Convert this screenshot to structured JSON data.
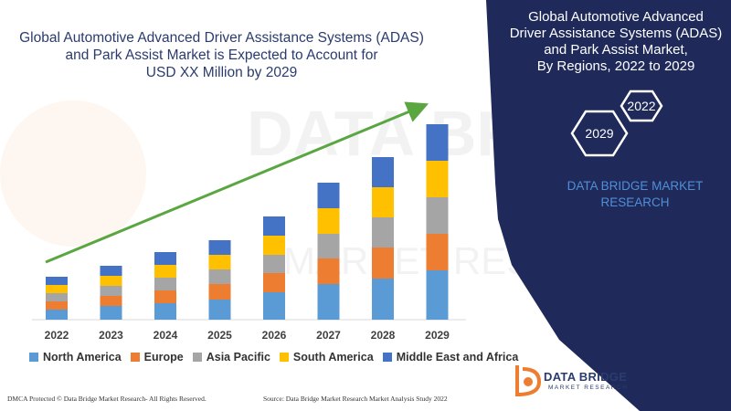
{
  "chart_data": {
    "type": "bar",
    "stacked": true,
    "title": "Global Automotive Advanced Driver Assistance Systems (ADAS) and Park Assist Market is Expected to Account for USD XX Million by 2029",
    "categories": [
      "2022",
      "2023",
      "2024",
      "2025",
      "2026",
      "2027",
      "2028",
      "2029"
    ],
    "series": [
      {
        "name": "North America",
        "color": "#5b9bd5",
        "values": [
          11,
          15,
          18,
          22,
          30,
          39,
          45,
          54
        ]
      },
      {
        "name": "Europe",
        "color": "#ed7d31",
        "values": [
          9,
          11,
          14,
          17,
          21,
          28,
          34,
          40
        ]
      },
      {
        "name": "Asia Pacific",
        "color": "#a5a5a5",
        "values": [
          9,
          11,
          14,
          16,
          20,
          27,
          33,
          40
        ]
      },
      {
        "name": "South America",
        "color": "#ffc000",
        "values": [
          9,
          11,
          14,
          16,
          21,
          28,
          33,
          40
        ]
      },
      {
        "name": "Middle East and Africa",
        "color": "#4472c4",
        "values": [
          9,
          11,
          14,
          16,
          21,
          28,
          33,
          40
        ]
      }
    ],
    "legend_position": "bottom",
    "grid": false
  },
  "title_lines": [
    "Global Automotive Advanced Driver Assistance Systems (ADAS)",
    "and Park Assist Market is Expected to Account for",
    "USD XX Million by 2029"
  ],
  "right_panel": {
    "title_lines": [
      "Global Automotive Advanced",
      "Driver Assistance Systems (ADAS)",
      "and Park Assist Market,",
      "By Regions, 2022 to 2029"
    ],
    "hex_start": "2022",
    "hex_end": "2029",
    "brand_lines": [
      "DATA BRIDGE MARKET",
      "RESEARCH"
    ],
    "bg_color": "#1f2a5a"
  },
  "logo": {
    "name": "DATA BRIDGE",
    "sub": "MARKET RESEARCH"
  },
  "footer": {
    "left": "DMCA Protected © Data Bridge Market Research- All Rights Reserved.",
    "right": "Source: Data Bridge Market Research Market Analysis Study 2022"
  },
  "colors": {
    "arrow": "#5aa640",
    "title": "#2a3c6e"
  }
}
